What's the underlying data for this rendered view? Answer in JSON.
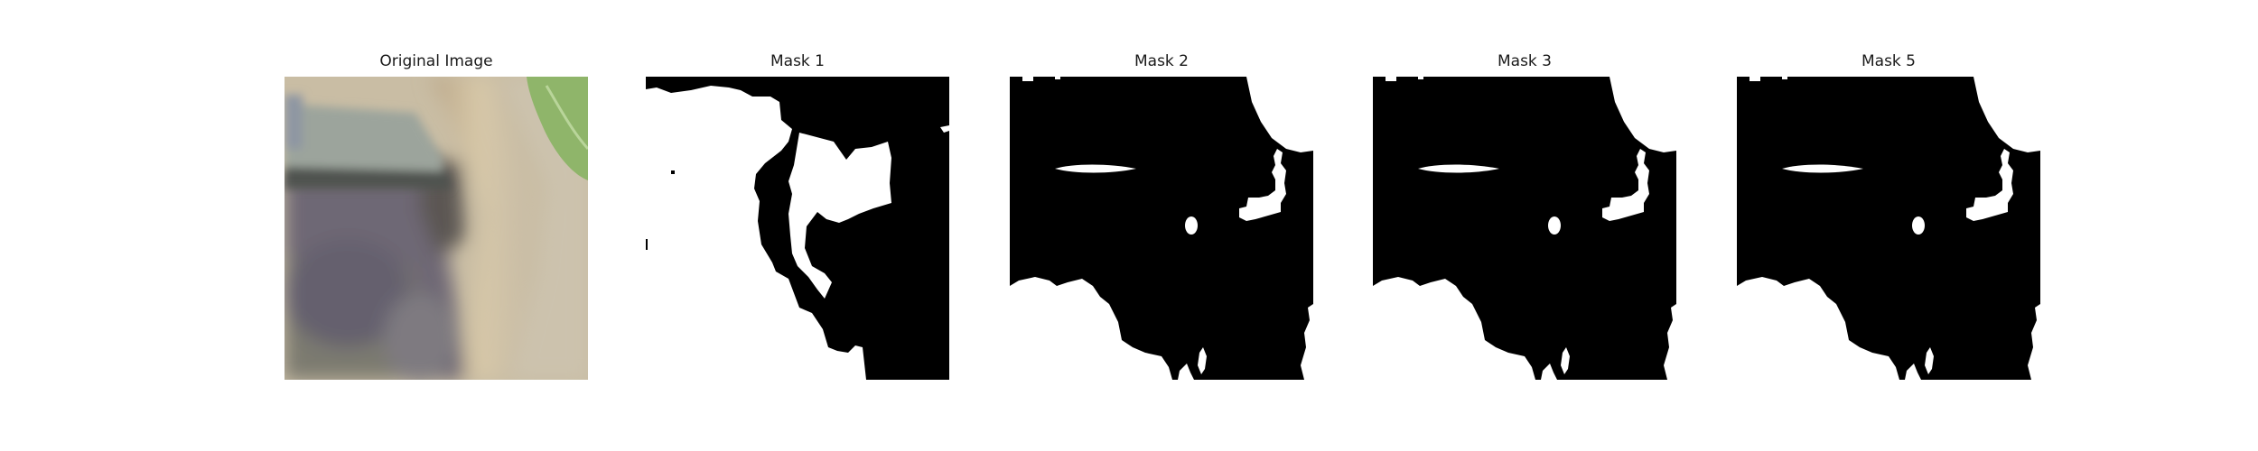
{
  "figure": {
    "panels": [
      {
        "title": "Original Image"
      },
      {
        "title": "Mask 1"
      },
      {
        "title": "Mask 2"
      },
      {
        "title": "Mask 3"
      },
      {
        "title": "Mask 5"
      }
    ]
  },
  "colors": {
    "mask_foreground": "#ffffff",
    "mask_background": "#000000",
    "photo_sand": "#cbbd9f",
    "photo_gray_block": "#9aa39b",
    "photo_leaf": "#8fb56a"
  }
}
